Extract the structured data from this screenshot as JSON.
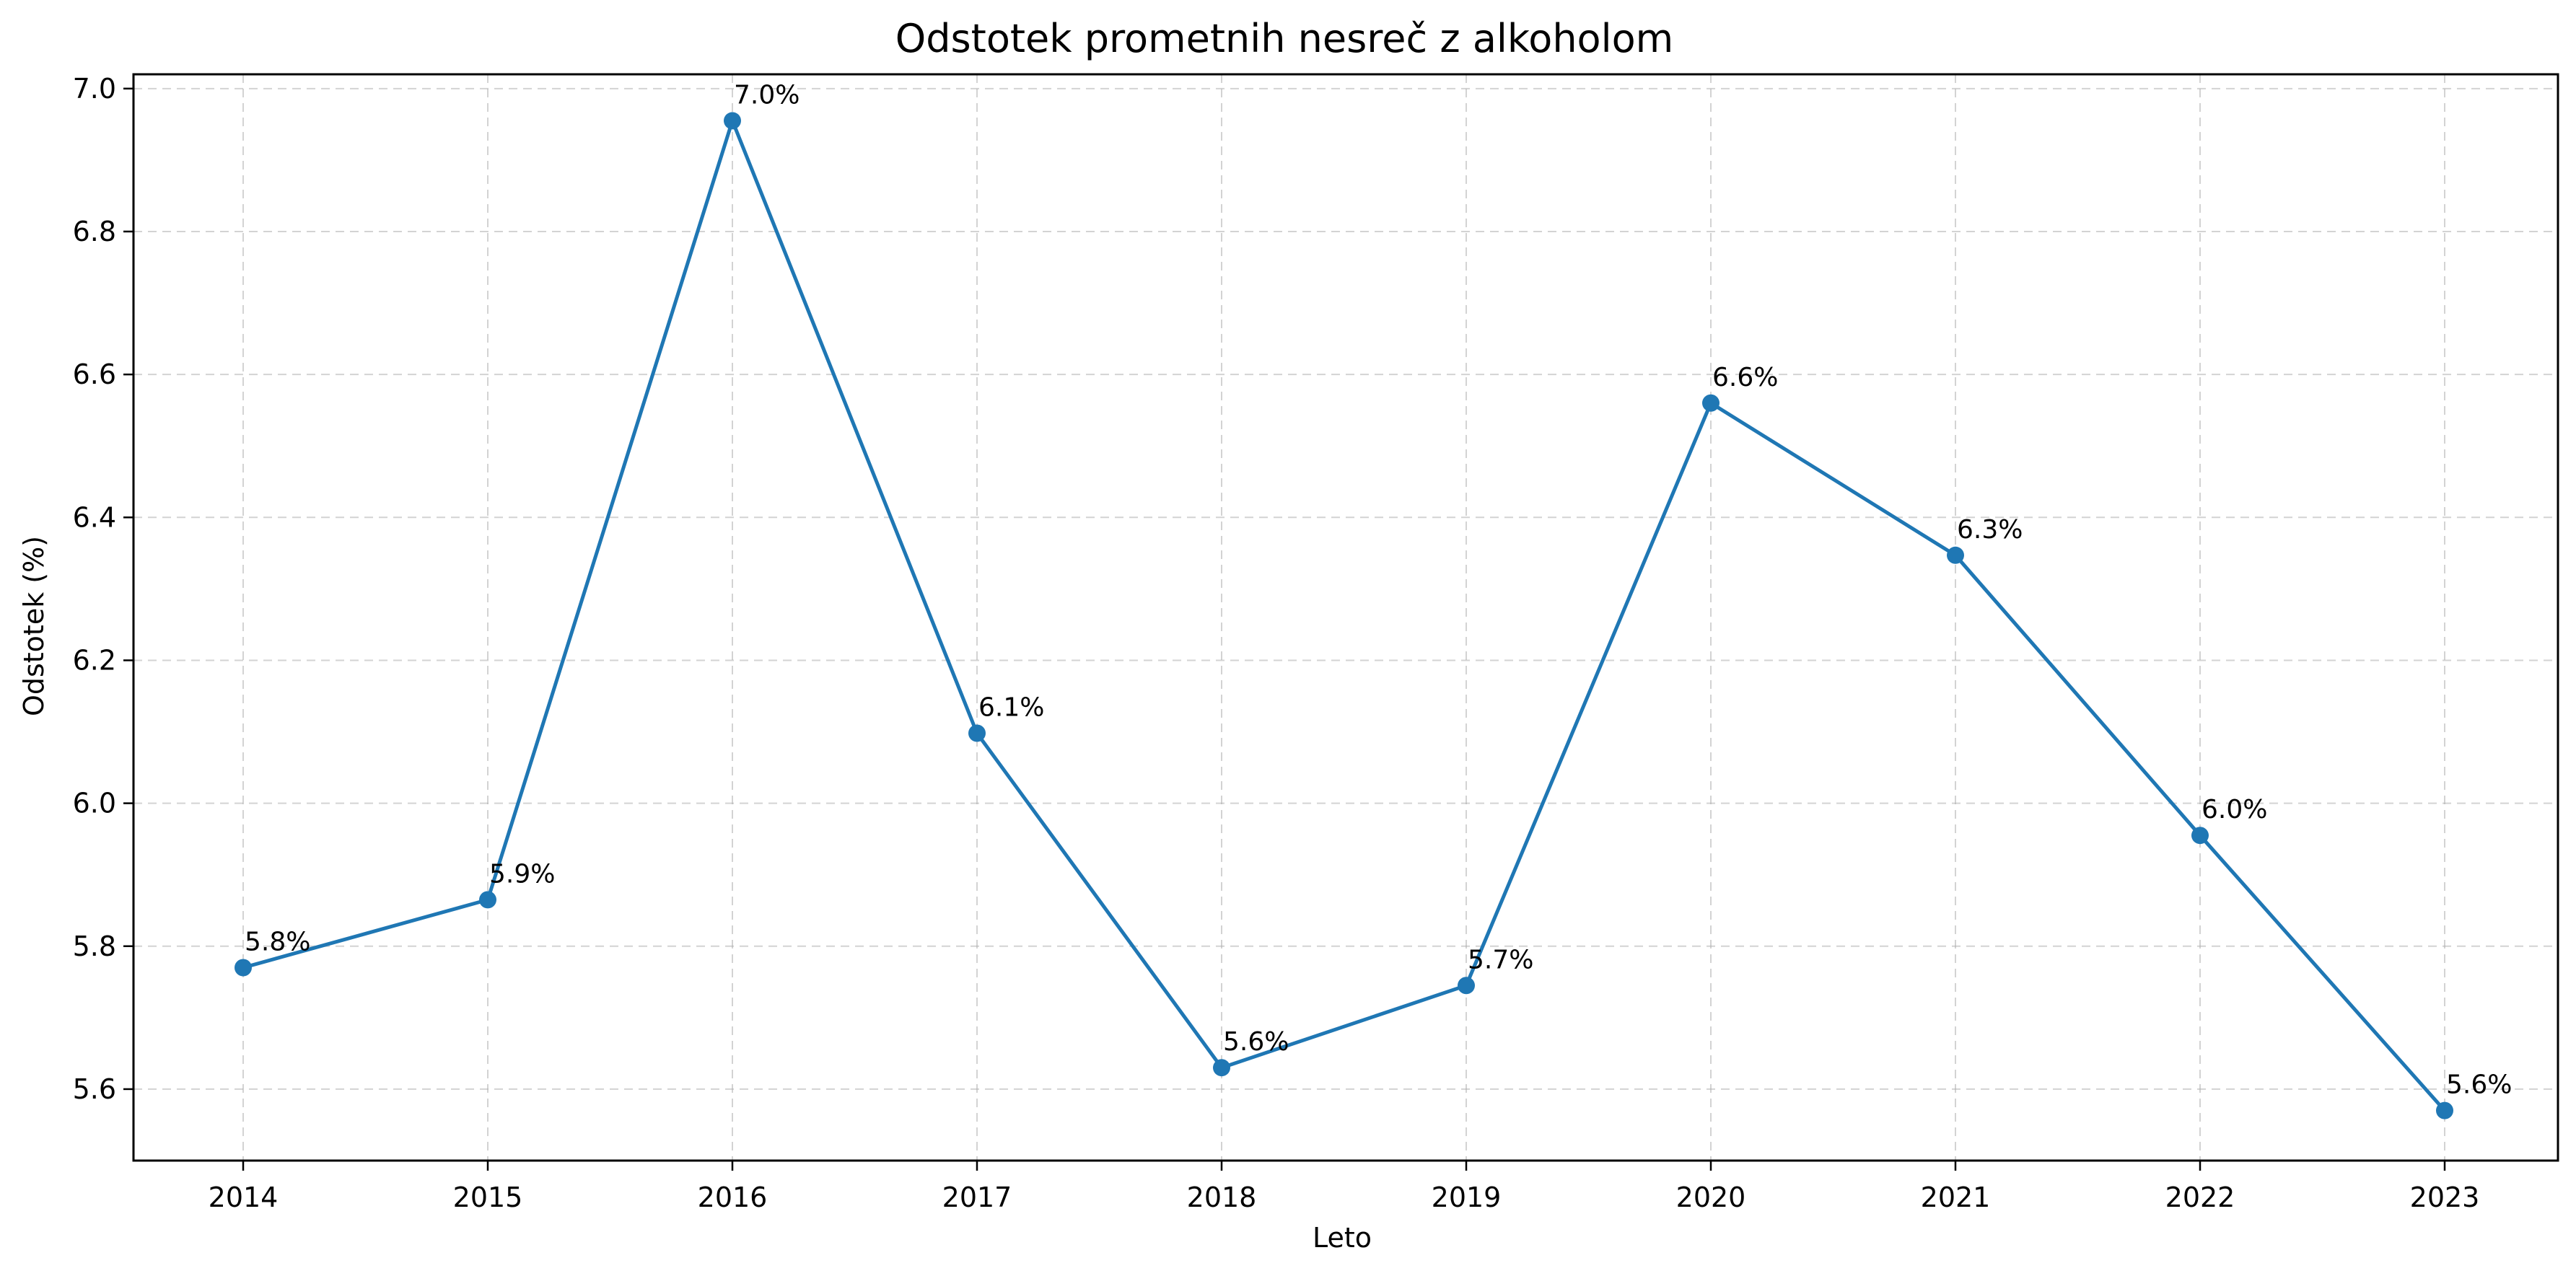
{
  "chart_data": {
    "type": "line",
    "title": "Odstotek prometnih nesreč z alkoholom",
    "xlabel": "Leto",
    "ylabel": "Odstotek (%)",
    "x": [
      "2014",
      "2015",
      "2016",
      "2017",
      "2018",
      "2019",
      "2020",
      "2021",
      "2022",
      "2023"
    ],
    "series": [
      {
        "values": [
          5.77,
          5.865,
          6.955,
          6.098,
          5.63,
          5.745,
          6.56,
          6.347,
          5.955,
          5.57
        ],
        "labels": [
          "5.8%",
          "5.9%",
          "7.0%",
          "6.1%",
          "5.6%",
          "5.7%",
          "6.6%",
          "6.3%",
          "6.0%",
          "5.6%"
        ],
        "color": "#1f77b4",
        "marker": "circle"
      }
    ],
    "ylim": [
      5.5,
      7.02
    ],
    "yticks": [
      "5.6",
      "5.8",
      "6.0",
      "6.2",
      "6.4",
      "6.6",
      "6.8",
      "7.0"
    ],
    "grid": true,
    "legend": "none"
  }
}
